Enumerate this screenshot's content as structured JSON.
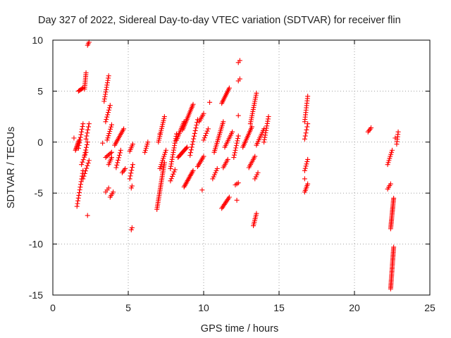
{
  "chart_data": {
    "type": "scatter",
    "title": "Day 327 of 2022, Sidereal Day-to-day VTEC variation (SDTVAR) for receiver flin",
    "xlabel": "GPS time / hours",
    "ylabel": "SDTVAR / TECUs",
    "xlim": [
      0,
      25
    ],
    "ylim": [
      -15,
      10
    ],
    "xticks": [
      0,
      5,
      10,
      15,
      20,
      25
    ],
    "yticks": [
      -15,
      -10,
      -5,
      0,
      5,
      10
    ],
    "xtick_labels": [
      "0",
      "5",
      "10",
      "15",
      "20",
      "25"
    ],
    "ytick_labels": [
      "-15",
      "-10",
      "-5",
      "0",
      "5",
      "10"
    ],
    "grid": true,
    "marker": "+",
    "colors": {
      "points": "#ff0000",
      "grid": "#a0a0a0",
      "axis": "#000000"
    },
    "tracks": [
      {
        "x": [
          1.5,
          1.75
        ],
        "y": [
          -0.8,
          0.2
        ],
        "n": 10
      },
      {
        "x": [
          1.6,
          2.0
        ],
        "y": [
          -6.3,
          -2.8
        ],
        "n": 14
      },
      {
        "x": [
          1.7,
          2.0
        ],
        "y": [
          5.0,
          5.3
        ],
        "n": 6
      },
      {
        "x": [
          1.7,
          2.0
        ],
        "y": [
          -0.6,
          1.8
        ],
        "n": 10
      },
      {
        "x": [
          1.9,
          2.2
        ],
        "y": [
          -2.2,
          -1.0
        ],
        "n": 6
      },
      {
        "x": [
          2.0,
          2.4
        ],
        "y": [
          -3.6,
          -1.8
        ],
        "n": 8
      },
      {
        "x": [
          2.1,
          2.2
        ],
        "y": [
          5.2,
          6.8
        ],
        "n": 10
      },
      {
        "x": [
          2.1,
          2.3
        ],
        "y": [
          -1.3,
          0.0
        ],
        "n": 6
      },
      {
        "x": [
          2.2,
          2.4
        ],
        "y": [
          0.3,
          1.8
        ],
        "n": 6
      },
      {
        "x": [
          2.3,
          2.4
        ],
        "y": [
          9.5,
          9.8
        ],
        "n": 3
      },
      {
        "x": [
          3.4,
          3.7
        ],
        "y": [
          4.0,
          6.5
        ],
        "n": 12
      },
      {
        "x": [
          3.5,
          3.8
        ],
        "y": [
          2.0,
          3.6
        ],
        "n": 8
      },
      {
        "x": [
          3.5,
          3.7
        ],
        "y": [
          -4.9,
          -4.5
        ],
        "n": 3
      },
      {
        "x": [
          3.6,
          3.9
        ],
        "y": [
          0.2,
          1.7
        ],
        "n": 8
      },
      {
        "x": [
          3.5,
          3.9
        ],
        "y": [
          -1.5,
          -1.0
        ],
        "n": 6
      },
      {
        "x": [
          3.7,
          3.9
        ],
        "y": [
          -2.2,
          -1.5
        ],
        "n": 5
      },
      {
        "x": [
          3.8,
          4.0
        ],
        "y": [
          -5.4,
          -4.9
        ],
        "n": 4
      },
      {
        "x": [
          4.1,
          4.7
        ],
        "y": [
          -0.3,
          1.3
        ],
        "n": 12
      },
      {
        "x": [
          4.2,
          4.5
        ],
        "y": [
          -2.5,
          -0.8
        ],
        "n": 8
      },
      {
        "x": [
          4.6,
          4.8
        ],
        "y": [
          -3.0,
          -2.6
        ],
        "n": 4
      },
      {
        "x": [
          5.1,
          5.3
        ],
        "y": [
          -0.9,
          -0.2
        ],
        "n": 5
      },
      {
        "x": [
          5.1,
          5.3
        ],
        "y": [
          -3.6,
          -2.2
        ],
        "n": 6
      },
      {
        "x": [
          5.2,
          5.25
        ],
        "y": [
          -4.5,
          -4.3
        ],
        "n": 2
      },
      {
        "x": [
          5.2,
          5.25
        ],
        "y": [
          -8.6,
          -8.4
        ],
        "n": 2
      },
      {
        "x": [
          6.1,
          6.3
        ],
        "y": [
          -1.0,
          0.0
        ],
        "n": 6
      },
      {
        "x": [
          6.9,
          7.4
        ],
        "y": [
          -6.6,
          -2.0
        ],
        "n": 28
      },
      {
        "x": [
          7.0,
          7.4
        ],
        "y": [
          0.0,
          2.5
        ],
        "n": 14
      },
      {
        "x": [
          7.1,
          7.5
        ],
        "y": [
          -2.6,
          -0.8
        ],
        "n": 10
      },
      {
        "x": [
          7.8,
          8.2
        ],
        "y": [
          -2.6,
          0.8
        ],
        "n": 16
      },
      {
        "x": [
          7.8,
          8.1
        ],
        "y": [
          -3.8,
          -2.7
        ],
        "n": 6
      },
      {
        "x": [
          8.2,
          8.7
        ],
        "y": [
          0.2,
          2.0
        ],
        "n": 12
      },
      {
        "x": [
          8.3,
          8.9
        ],
        "y": [
          -1.5,
          -0.5
        ],
        "n": 12
      },
      {
        "x": [
          8.6,
          9.3
        ],
        "y": [
          1.2,
          3.7
        ],
        "n": 18
      },
      {
        "x": [
          8.7,
          9.3
        ],
        "y": [
          -4.4,
          -2.8
        ],
        "n": 14
      },
      {
        "x": [
          9.1,
          9.6
        ],
        "y": [
          -1.3,
          2.2
        ],
        "n": 14
      },
      {
        "x": [
          9.6,
          10.0
        ],
        "y": [
          -2.4,
          -1.4
        ],
        "n": 8
      },
      {
        "x": [
          9.7,
          10.0
        ],
        "y": [
          2.0,
          2.8
        ],
        "n": 6
      },
      {
        "x": [
          10.0,
          10.3
        ],
        "y": [
          0.2,
          1.3
        ],
        "n": 6
      },
      {
        "x": [
          10.7,
          11.3
        ],
        "y": [
          -1.0,
          2.0
        ],
        "n": 18
      },
      {
        "x": [
          10.6,
          10.9
        ],
        "y": [
          -3.6,
          -2.6
        ],
        "n": 6
      },
      {
        "x": [
          11.2,
          11.7
        ],
        "y": [
          3.8,
          5.3
        ],
        "n": 12
      },
      {
        "x": [
          11.2,
          11.7
        ],
        "y": [
          -6.5,
          -5.4
        ],
        "n": 10
      },
      {
        "x": [
          11.4,
          11.9
        ],
        "y": [
          -0.5,
          1.0
        ],
        "n": 10
      },
      {
        "x": [
          11.3,
          11.6
        ],
        "y": [
          -2.5,
          -1.7
        ],
        "n": 6
      },
      {
        "x": [
          12.0,
          12.3
        ],
        "y": [
          -1.5,
          0.6
        ],
        "n": 10
      },
      {
        "x": [
          12.1,
          12.3
        ],
        "y": [
          -4.2,
          -4.0
        ],
        "n": 3
      },
      {
        "x": [
          12.3,
          12.4
        ],
        "y": [
          7.8,
          8.0
        ],
        "n": 2
      },
      {
        "x": [
          12.3,
          12.4
        ],
        "y": [
          6.0,
          6.2
        ],
        "n": 2
      },
      {
        "x": [
          12.6,
          13.2
        ],
        "y": [
          -0.5,
          1.5
        ],
        "n": 14
      },
      {
        "x": [
          13.0,
          13.4
        ],
        "y": [
          -2.5,
          -1.4
        ],
        "n": 8
      },
      {
        "x": [
          13.1,
          13.5
        ],
        "y": [
          1.8,
          4.8
        ],
        "n": 16
      },
      {
        "x": [
          13.3,
          13.5
        ],
        "y": [
          -8.2,
          -7.0
        ],
        "n": 8
      },
      {
        "x": [
          13.4,
          13.6
        ],
        "y": [
          -3.6,
          -3.0
        ],
        "n": 4
      },
      {
        "x": [
          13.5,
          14.0
        ],
        "y": [
          -0.3,
          1.3
        ],
        "n": 10
      },
      {
        "x": [
          14.0,
          14.3
        ],
        "y": [
          0.0,
          2.5
        ],
        "n": 12
      },
      {
        "x": [
          16.7,
          16.9
        ],
        "y": [
          2.0,
          4.5
        ],
        "n": 12
      },
      {
        "x": [
          16.7,
          16.9
        ],
        "y": [
          0.3,
          1.8
        ],
        "n": 6
      },
      {
        "x": [
          16.7,
          16.9
        ],
        "y": [
          -2.8,
          -1.7
        ],
        "n": 6
      },
      {
        "x": [
          16.7,
          16.9
        ],
        "y": [
          -4.9,
          -4.1
        ],
        "n": 6
      },
      {
        "x": [
          20.9,
          21.1
        ],
        "y": [
          1.0,
          1.4
        ],
        "n": 4
      },
      {
        "x": [
          22.2,
          22.5
        ],
        "y": [
          -2.2,
          -0.8
        ],
        "n": 8
      },
      {
        "x": [
          22.2,
          22.4
        ],
        "y": [
          -4.6,
          -4.1
        ],
        "n": 4
      },
      {
        "x": [
          22.4,
          22.6
        ],
        "y": [
          -8.5,
          -5.5
        ],
        "n": 24
      },
      {
        "x": [
          22.4,
          22.6
        ],
        "y": [
          -14.4,
          -10.3
        ],
        "n": 32
      },
      {
        "x": [
          22.8,
          22.9
        ],
        "y": [
          -0.2,
          1.0
        ],
        "n": 6
      }
    ],
    "points": [
      {
        "x": 1.4,
        "y": 0.4
      },
      {
        "x": 2.3,
        "y": -7.2
      },
      {
        "x": 3.3,
        "y": -0.1
      },
      {
        "x": 7.1,
        "y": 0.8
      },
      {
        "x": 9.9,
        "y": -4.7
      },
      {
        "x": 10.4,
        "y": 3.9
      },
      {
        "x": 12.3,
        "y": 2.6
      },
      {
        "x": 12.2,
        "y": -5.7
      },
      {
        "x": 16.7,
        "y": -3.6
      },
      {
        "x": 22.7,
        "y": 0.4
      }
    ]
  }
}
